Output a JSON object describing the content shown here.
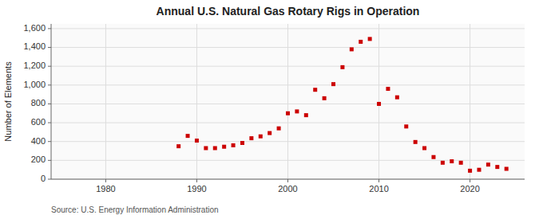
{
  "chart_data": {
    "type": "scatter",
    "title": "Annual U.S. Natural Gas Rotary Rigs in Operation",
    "ylabel": "Number of Elements",
    "source": "Source: U.S. Energy Information Administration",
    "x": [
      1988,
      1989,
      1990,
      1991,
      1992,
      1993,
      1994,
      1995,
      1996,
      1997,
      1998,
      1999,
      2000,
      2001,
      2002,
      2003,
      2004,
      2005,
      2006,
      2007,
      2008,
      2009,
      2010,
      2011,
      2012,
      2013,
      2014,
      2015,
      2016,
      2017,
      2018,
      2019,
      2020,
      2021,
      2022,
      2023,
      2024
    ],
    "values": [
      350,
      460,
      410,
      330,
      330,
      345,
      360,
      385,
      435,
      455,
      490,
      540,
      700,
      720,
      680,
      950,
      860,
      1010,
      1190,
      1380,
      1460,
      1490,
      800,
      960,
      870,
      560,
      395,
      330,
      235,
      175,
      190,
      175,
      90,
      100,
      155,
      130,
      110
    ],
    "color": "#cc0000",
    "marker": "square",
    "xlim": [
      1974,
      2026
    ],
    "ylim": [
      0,
      1650
    ],
    "xticks": [
      1980,
      1990,
      2000,
      2010,
      2020
    ],
    "yticks": [
      0,
      200,
      400,
      600,
      800,
      {
        "value": 1000,
        "label": "1,000"
      },
      {
        "value": 1200,
        "label": "1,200"
      },
      {
        "value": 1400,
        "label": "1,400"
      },
      {
        "value": 1600,
        "label": "1,600"
      }
    ],
    "grid": true
  }
}
